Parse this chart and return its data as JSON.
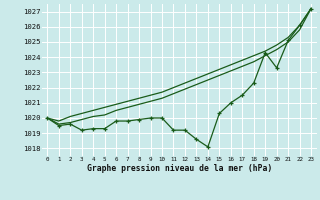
{
  "title": "Graphe pression niveau de la mer (hPa)",
  "bg_color": "#cbeaea",
  "grid_color": "#ffffff",
  "line_color": "#1a5c1a",
  "xlim": [
    -0.5,
    23.5
  ],
  "ylim": [
    1017.5,
    1027.5
  ],
  "yticks": [
    1018,
    1019,
    1020,
    1021,
    1022,
    1023,
    1024,
    1025,
    1026,
    1027
  ],
  "xticks": [
    0,
    1,
    2,
    3,
    4,
    5,
    6,
    7,
    8,
    9,
    10,
    11,
    12,
    13,
    14,
    15,
    16,
    17,
    18,
    19,
    20,
    21,
    22,
    23
  ],
  "series1": [
    1020.0,
    1019.5,
    1019.6,
    1019.2,
    1019.3,
    1019.3,
    1019.8,
    1019.8,
    1019.9,
    1020.0,
    1020.0,
    1019.2,
    1019.2,
    1018.6,
    1018.1,
    1020.3,
    1021.0,
    1021.5,
    1022.3,
    1024.3,
    1023.3,
    1025.1,
    1026.1,
    1027.2
  ],
  "series2": [
    1020.0,
    1019.8,
    1020.1,
    1020.3,
    1020.5,
    1020.7,
    1020.9,
    1021.1,
    1021.3,
    1021.5,
    1021.7,
    1022.0,
    1022.3,
    1022.6,
    1022.9,
    1023.2,
    1023.5,
    1023.8,
    1024.1,
    1024.4,
    1024.8,
    1025.3,
    1026.1,
    1027.2
  ],
  "series3": [
    1020.0,
    1019.6,
    1019.7,
    1019.9,
    1020.1,
    1020.2,
    1020.5,
    1020.7,
    1020.9,
    1021.1,
    1021.3,
    1021.6,
    1021.9,
    1022.2,
    1022.5,
    1022.8,
    1023.1,
    1023.4,
    1023.7,
    1024.1,
    1024.5,
    1025.0,
    1025.8,
    1027.2
  ]
}
